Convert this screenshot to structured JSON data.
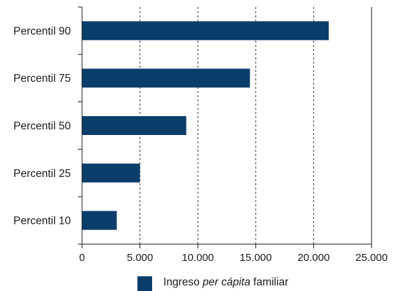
{
  "chart_data": {
    "type": "bar",
    "orientation": "horizontal",
    "categories": [
      "Percentil 90",
      "Percentil 75",
      "Percentil 50",
      "Percentil 25",
      "Percentil 10"
    ],
    "series": [
      {
        "name": "Ingreso per cápita familiar",
        "values": [
          21300,
          14500,
          9000,
          5000,
          3000
        ]
      }
    ],
    "x_ticks": [
      "0",
      "5.000",
      "10.000",
      "15.000",
      "20.000",
      "25.000"
    ],
    "xlim": [
      0,
      25000
    ],
    "grid": "vertical dashed",
    "legend_position": "bottom-center",
    "legend": {
      "prefix": "Ingreso ",
      "italic": "per cápita",
      "suffix": " familiar"
    },
    "colors": {
      "bar": "#0b3d6b",
      "axis": "#1a1a1a",
      "grid": "#333333"
    }
  }
}
